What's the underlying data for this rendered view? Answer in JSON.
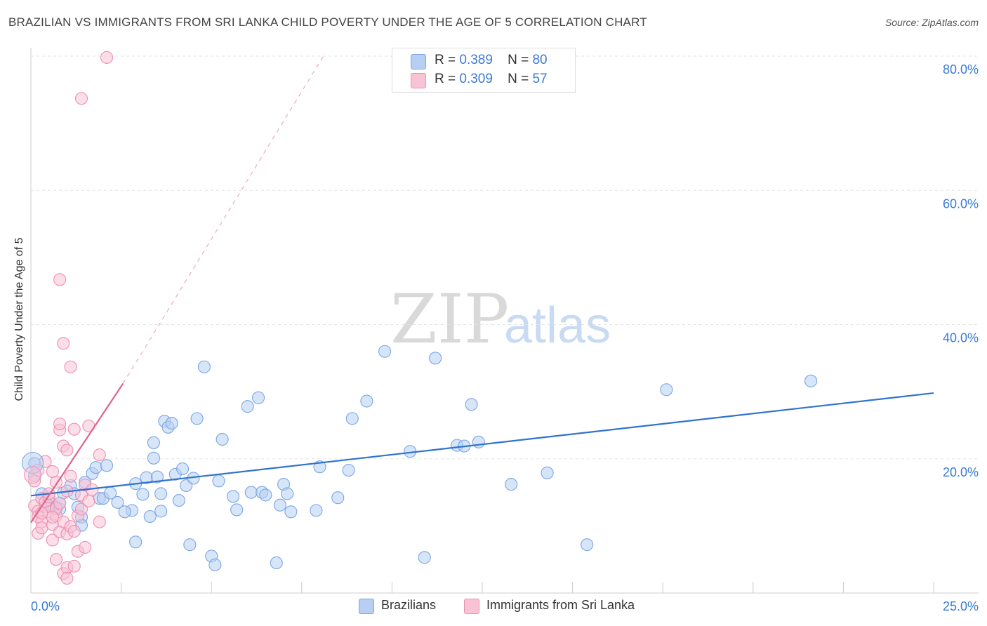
{
  "chart_data": {
    "type": "scatter",
    "title": "BRAZILIAN VS IMMIGRANTS FROM SRI LANKA CHILD POVERTY UNDER THE AGE OF 5 CORRELATION CHART",
    "source": "Source: ZipAtlas.com",
    "ylabel": "Child Poverty Under the Age of 5",
    "watermark_zip": "ZIP",
    "watermark_atlas": "atlas",
    "xlim": [
      0,
      25
    ],
    "ylim": [
      0,
      80
    ],
    "x_tick_labels": [
      {
        "value": 0,
        "label": "0.0%"
      },
      {
        "value": 25,
        "label": "25.0%"
      }
    ],
    "y_tick_labels": [
      {
        "value": 20,
        "label": "20.0%"
      },
      {
        "value": 40,
        "label": "40.0%"
      },
      {
        "value": 60,
        "label": "60.0%"
      },
      {
        "value": 80,
        "label": "80.0%"
      }
    ],
    "x_minor_ticks": [
      2.5,
      5,
      7.5,
      10,
      12.5,
      15,
      17.5,
      20,
      22.5,
      25
    ],
    "legend": [
      {
        "r_label": "R =",
        "r_value": "0.389",
        "n_label": "N =",
        "n_value": "80"
      },
      {
        "r_label": "R =",
        "r_value": "0.309",
        "n_label": "N =",
        "n_value": "57"
      }
    ],
    "series": [
      {
        "name": "Brazilians",
        "color": "#7aa6e6",
        "fill": "#b6cff3",
        "line_color": "#2f73d0",
        "trend": {
          "x0": 0,
          "y0": 14.5,
          "x1": 25,
          "y1": 29.8
        },
        "points": [
          [
            0.1,
            19.3
          ],
          [
            0.1,
            17.5
          ],
          [
            0.3,
            14.8
          ],
          [
            0.5,
            13.0
          ],
          [
            0.6,
            13.2
          ],
          [
            0.7,
            12.8
          ],
          [
            0.8,
            12.5
          ],
          [
            0.8,
            13.4
          ],
          [
            0.9,
            14.9
          ],
          [
            1.1,
            16.0
          ],
          [
            1.2,
            14.8
          ],
          [
            1.3,
            12.8
          ],
          [
            1.4,
            11.3
          ],
          [
            1.4,
            10.1
          ],
          [
            1.7,
            17.8
          ],
          [
            1.8,
            18.7
          ],
          [
            1.9,
            14.1
          ],
          [
            2.0,
            14.1
          ],
          [
            2.1,
            19.0
          ],
          [
            2.2,
            14.9
          ],
          [
            2.8,
            12.3
          ],
          [
            2.9,
            7.6
          ],
          [
            2.9,
            16.3
          ],
          [
            3.1,
            14.7
          ],
          [
            3.2,
            17.2
          ],
          [
            3.3,
            11.4
          ],
          [
            3.4,
            20.1
          ],
          [
            3.4,
            22.4
          ],
          [
            3.5,
            17.3
          ],
          [
            3.6,
            14.8
          ],
          [
            3.6,
            12.2
          ],
          [
            3.7,
            25.6
          ],
          [
            3.8,
            24.7
          ],
          [
            3.9,
            25.3
          ],
          [
            4.0,
            17.7
          ],
          [
            4.2,
            18.5
          ],
          [
            4.3,
            16.0
          ],
          [
            4.4,
            7.2
          ],
          [
            4.5,
            17.1
          ],
          [
            4.6,
            26.0
          ],
          [
            4.8,
            33.7
          ],
          [
            5.0,
            5.5
          ],
          [
            5.1,
            4.2
          ],
          [
            5.3,
            22.9
          ],
          [
            5.6,
            14.4
          ],
          [
            5.7,
            12.4
          ],
          [
            6.0,
            27.8
          ],
          [
            6.1,
            15.0
          ],
          [
            6.3,
            29.1
          ],
          [
            6.4,
            15.0
          ],
          [
            6.8,
            4.5
          ],
          [
            6.9,
            13.1
          ],
          [
            7.0,
            16.2
          ],
          [
            7.1,
            14.8
          ],
          [
            7.2,
            12.1
          ],
          [
            8.0,
            18.8
          ],
          [
            8.5,
            14.2
          ],
          [
            8.8,
            18.3
          ],
          [
            8.9,
            26.0
          ],
          [
            9.3,
            28.6
          ],
          [
            9.8,
            36.0
          ],
          [
            10.5,
            21.1
          ],
          [
            10.9,
            5.3
          ],
          [
            11.2,
            35.0
          ],
          [
            11.8,
            22.0
          ],
          [
            12.0,
            21.9
          ],
          [
            12.2,
            28.1
          ],
          [
            12.4,
            22.5
          ],
          [
            13.3,
            16.2
          ],
          [
            14.3,
            17.9
          ],
          [
            15.4,
            7.2
          ],
          [
            17.6,
            30.3
          ],
          [
            21.6,
            31.6
          ],
          [
            1.5,
            16.5
          ],
          [
            2.4,
            13.5
          ],
          [
            6.5,
            14.6
          ],
          [
            4.1,
            13.8
          ],
          [
            7.9,
            12.3
          ],
          [
            5.2,
            16.7
          ],
          [
            2.6,
            12.1
          ]
        ]
      },
      {
        "name": "Immigrants from Sri Lanka",
        "color": "#ee8fb0",
        "fill": "#f8c3d5",
        "line_color": "#e0628e",
        "trend": {
          "x0": 0,
          "y0": 10.5,
          "x1": 2.55,
          "y1": 31.2
        },
        "trend_ext": {
          "x0": 2.55,
          "y0": 31.2,
          "x1": 8.1,
          "y1": 80.0
        },
        "points": [
          [
            0.1,
            16.7
          ],
          [
            0.1,
            13.0
          ],
          [
            0.2,
            12.2
          ],
          [
            0.2,
            11.4
          ],
          [
            0.2,
            8.9
          ],
          [
            0.3,
            10.6
          ],
          [
            0.3,
            9.7
          ],
          [
            0.3,
            14.1
          ],
          [
            0.4,
            12.9
          ],
          [
            0.4,
            13.6
          ],
          [
            0.5,
            12.1
          ],
          [
            0.5,
            14.3
          ],
          [
            0.6,
            10.2
          ],
          [
            0.6,
            18.1
          ],
          [
            0.6,
            7.9
          ],
          [
            0.7,
            11.5
          ],
          [
            0.7,
            5.0
          ],
          [
            0.7,
            12.6
          ],
          [
            0.8,
            24.3
          ],
          [
            0.8,
            25.2
          ],
          [
            0.8,
            46.7
          ],
          [
            0.8,
            9.1
          ],
          [
            0.9,
            10.6
          ],
          [
            0.9,
            37.2
          ],
          [
            0.9,
            2.9
          ],
          [
            0.9,
            21.9
          ],
          [
            1.0,
            21.3
          ],
          [
            1.0,
            3.8
          ],
          [
            1.0,
            8.8
          ],
          [
            1.0,
            2.2
          ],
          [
            1.1,
            33.7
          ],
          [
            1.1,
            17.4
          ],
          [
            1.1,
            9.9
          ],
          [
            1.2,
            4.0
          ],
          [
            1.2,
            9.2
          ],
          [
            1.2,
            24.4
          ],
          [
            1.3,
            6.2
          ],
          [
            1.3,
            11.5
          ],
          [
            1.4,
            14.6
          ],
          [
            1.4,
            12.5
          ],
          [
            1.5,
            6.8
          ],
          [
            1.5,
            16.1
          ],
          [
            1.6,
            24.9
          ],
          [
            1.6,
            13.7
          ],
          [
            1.9,
            10.6
          ],
          [
            1.9,
            20.6
          ],
          [
            1.4,
            73.7
          ],
          [
            2.1,
            79.8
          ],
          [
            0.2,
            18.3
          ],
          [
            0.4,
            19.6
          ],
          [
            0.5,
            14.8
          ],
          [
            0.6,
            11.3
          ],
          [
            0.7,
            16.5
          ],
          [
            0.3,
            11.9
          ],
          [
            1.0,
            15.2
          ],
          [
            0.8,
            13.4
          ],
          [
            1.7,
            15.4
          ]
        ]
      }
    ]
  }
}
